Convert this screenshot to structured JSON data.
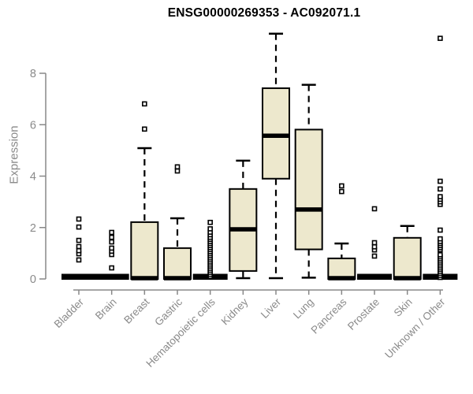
{
  "chart_data": {
    "type": "boxplot",
    "title": "ENSG00000269353 - AC092071.1",
    "ylabel": "Expression",
    "xlabel": "",
    "ylim": [
      0,
      9.6
    ],
    "yticks": [
      0,
      2,
      4,
      6,
      8
    ],
    "grid": false,
    "legend": false,
    "colors": {
      "box_fill": "#EDE8CD",
      "box_stroke": "#000000",
      "median": "#000000",
      "whisker": "#000000",
      "outlier_stroke": "#000000",
      "outlier_fill": "#ffffff",
      "axis": "#888888",
      "tick_label": "#8a8a8a",
      "title": "#000000"
    },
    "categories": [
      "Bladder",
      "Brain",
      "Breast",
      "Gastric",
      "Hematopoietic cells",
      "Kidney",
      "Liver",
      "Lung",
      "Pancreas",
      "Prostate",
      "Skin",
      "Unknown / Other"
    ],
    "boxes": [
      {
        "category": "Bladder",
        "type": "flat",
        "median": 0,
        "q1": 0,
        "q3": 0,
        "whisker_low": 0,
        "whisker_high": 0,
        "outliers": [
          0.74,
          0.98,
          1.1,
          1.26,
          1.5,
          2.02,
          2.33
        ]
      },
      {
        "category": "Brain",
        "type": "flat",
        "median": 0,
        "q1": 0,
        "q3": 0,
        "whisker_low": 0,
        "whisker_high": 0,
        "outliers": [
          0.43,
          0.95,
          1.08,
          1.2,
          1.44,
          1.62,
          1.81
        ]
      },
      {
        "category": "Breast",
        "type": "box",
        "median": 0.03,
        "q1": 0,
        "q3": 2.21,
        "whisker_low": null,
        "whisker_high": 5.09,
        "outliers": [
          5.83,
          6.81
        ]
      },
      {
        "category": "Gastric",
        "type": "box",
        "median": 0.03,
        "q1": 0,
        "q3": 1.2,
        "whisker_low": null,
        "whisker_high": 2.36,
        "outliers": [
          4.2,
          4.36
        ]
      },
      {
        "category": "Hematopoietic cells",
        "type": "flat",
        "median": 0,
        "q1": 0,
        "q3": 0,
        "whisker_low": 0,
        "whisker_high": 0,
        "outliers": [
          0.1,
          0.18,
          0.26,
          0.34,
          0.42,
          0.5,
          0.58,
          0.66,
          0.74,
          0.82,
          0.9,
          0.98,
          1.06,
          1.14,
          1.22,
          1.3,
          1.38,
          1.46,
          1.54,
          1.62,
          1.72,
          1.82,
          1.95,
          2.2
        ]
      },
      {
        "category": "Kidney",
        "type": "box",
        "median": 1.93,
        "q1": 0.31,
        "q3": 3.5,
        "whisker_low": 0.03,
        "whisker_high": 4.6,
        "outliers": []
      },
      {
        "category": "Liver",
        "type": "box",
        "median": 5.57,
        "q1": 3.9,
        "q3": 7.42,
        "whisker_low": 0.03,
        "whisker_high": 9.54,
        "outliers": []
      },
      {
        "category": "Lung",
        "type": "box",
        "median": 2.7,
        "q1": 1.15,
        "q3": 5.81,
        "whisker_low": 0.05,
        "whisker_high": 7.55,
        "outliers": []
      },
      {
        "category": "Pancreas",
        "type": "box",
        "median": 0.03,
        "q1": 0,
        "q3": 0.8,
        "whisker_low": null,
        "whisker_high": 1.38,
        "outliers": [
          3.4,
          3.62
        ]
      },
      {
        "category": "Prostate",
        "type": "flat",
        "median": 0,
        "q1": 0,
        "q3": 0,
        "whisker_low": 0,
        "whisker_high": 0,
        "outliers": [
          0.89,
          1.13,
          1.25,
          1.41,
          2.73
        ]
      },
      {
        "category": "Skin",
        "type": "box",
        "median": 0.03,
        "q1": 0,
        "q3": 1.6,
        "whisker_low": null,
        "whisker_high": 2.06,
        "outliers": []
      },
      {
        "category": "Unknown / Other",
        "type": "flat",
        "median": 0,
        "q1": 0,
        "q3": 0,
        "whisker_low": 0,
        "whisker_high": 0,
        "outliers": [
          0.06,
          0.14,
          0.22,
          0.3,
          0.38,
          0.46,
          0.54,
          0.62,
          0.7,
          0.78,
          0.86,
          0.94,
          1.14,
          1.22,
          1.3,
          1.38,
          1.46,
          1.56,
          1.9,
          2.9,
          3.0,
          3.1,
          3.2,
          3.5,
          3.8,
          9.36
        ]
      }
    ]
  }
}
